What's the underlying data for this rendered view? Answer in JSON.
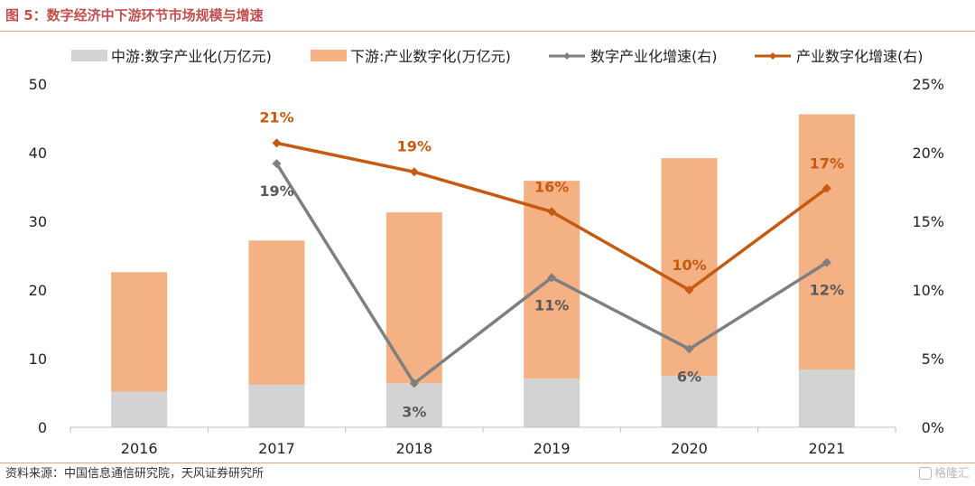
{
  "header": {
    "title": "图 5：数字经济中下游环节市场规模与增速"
  },
  "footer": {
    "source": "资料来源：中国信息通信研究院，天风证券研究所",
    "watermark": "格隆汇"
  },
  "colors": {
    "midstream_bar": "#d3d3d3",
    "downstream_bar": "#f4b183",
    "midstream_line": "#7f7f7f",
    "downstream_line": "#c55a11",
    "downstream_label": "#c55a11",
    "midstream_label": "#595959"
  },
  "chart_data": {
    "type": "bar",
    "categories": [
      "2016",
      "2017",
      "2018",
      "2019",
      "2020",
      "2021"
    ],
    "stacked": true,
    "series": [
      {
        "name": "中游:数字产业化(万亿元)",
        "type": "bar",
        "axis": "left",
        "values": [
          5.2,
          6.2,
          6.4,
          7.1,
          7.5,
          8.4
        ]
      },
      {
        "name": "下游:产业数字化(万亿元)",
        "type": "bar",
        "axis": "left",
        "values": [
          17.4,
          21.0,
          24.9,
          28.8,
          31.7,
          37.2
        ]
      },
      {
        "name": "数字产业化增速(右)",
        "type": "line",
        "axis": "right",
        "values": [
          null,
          19.2,
          3.2,
          10.9,
          5.7,
          12.0
        ],
        "labels": [
          "",
          "19%",
          "3%",
          "11%",
          "6%",
          "12%"
        ]
      },
      {
        "name": "产业数字化增速(右)",
        "type": "line",
        "axis": "right",
        "values": [
          null,
          20.7,
          18.6,
          15.7,
          10.0,
          17.4
        ],
        "labels": [
          "",
          "21%",
          "19%",
          "16%",
          "10%",
          "17%"
        ]
      }
    ],
    "y_left": {
      "min": 0,
      "max": 50,
      "ticks": [
        "0",
        "10",
        "20",
        "30",
        "40",
        "50"
      ]
    },
    "y_right": {
      "min": 0,
      "max": 25,
      "ticks": [
        "0%",
        "5%",
        "10%",
        "15%",
        "20%",
        "25%"
      ]
    },
    "legend_position": "top",
    "grid": false
  }
}
